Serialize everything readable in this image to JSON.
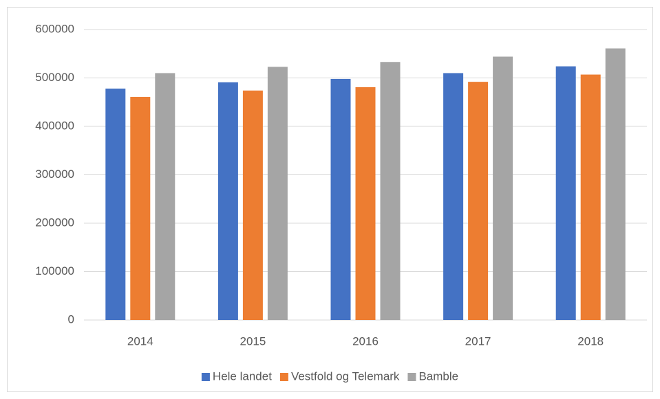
{
  "chart_data": {
    "type": "bar",
    "categories": [
      "2014",
      "2015",
      "2016",
      "2017",
      "2018"
    ],
    "series": [
      {
        "name": "Hele landet",
        "color": "#4472c4",
        "values": [
          478000,
          491000,
          498000,
          510000,
          524000
        ]
      },
      {
        "name": "Vestfold og Telemark",
        "color": "#ed7d31",
        "values": [
          461000,
          474000,
          481000,
          492000,
          507000
        ]
      },
      {
        "name": "Bamble",
        "color": "#a5a5a5",
        "values": [
          510000,
          523000,
          533000,
          544000,
          561000
        ]
      }
    ],
    "ylim": [
      0,
      600000
    ],
    "yticks": [
      0,
      100000,
      200000,
      300000,
      400000,
      500000,
      600000
    ],
    "grid": true,
    "legend": "bottom"
  }
}
